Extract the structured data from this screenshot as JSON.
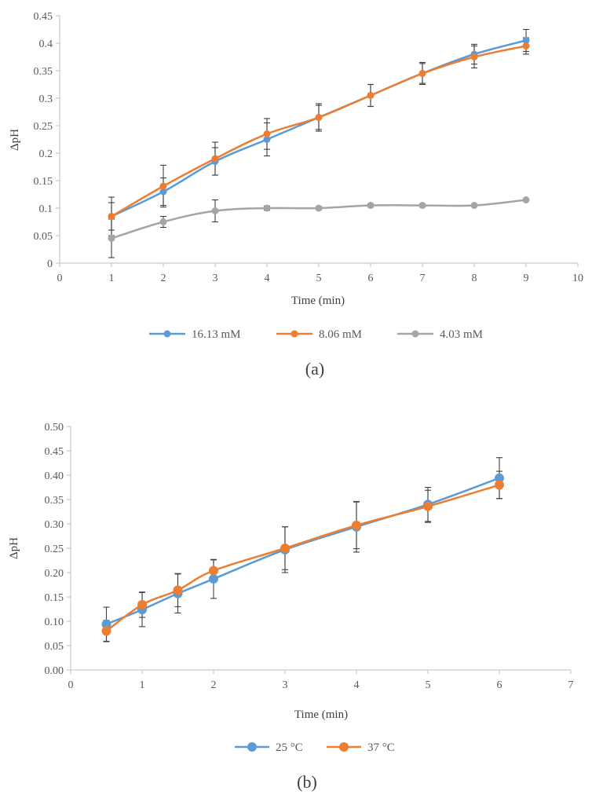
{
  "colors": {
    "blue": "#5b9bd5",
    "orange": "#ed7d31",
    "gray": "#a5a5a5",
    "axis": "#bfbfbf",
    "errbar": "#404040"
  },
  "chart_data": [
    {
      "type": "line",
      "caption": "(a)",
      "xlabel": "Time (min)",
      "ylabel": "ΔpH",
      "xlim": [
        0,
        10
      ],
      "ylim": [
        0,
        0.45
      ],
      "x_ticks": [
        "0",
        "1",
        "2",
        "3",
        "4",
        "5",
        "6",
        "7",
        "8",
        "9",
        "10"
      ],
      "y_ticks": [
        "0",
        "0.05",
        "0.1",
        "0.15",
        "0.2",
        "0.25",
        "0.3",
        "0.35",
        "0.4",
        "0.45"
      ],
      "legend_position": "bottom",
      "series": [
        {
          "name": "16.13 mM",
          "color": "#5b9bd5",
          "x": [
            1,
            2,
            3,
            4,
            5,
            6,
            7,
            8,
            9
          ],
          "values": [
            0.085,
            0.13,
            0.185,
            0.225,
            0.265,
            0.305,
            0.345,
            0.38,
            0.405
          ],
          "errors": [
            0.035,
            0.025,
            0.025,
            0.03,
            0.025,
            0.02,
            0.02,
            0.018,
            0.02
          ]
        },
        {
          "name": "8.06 mM",
          "color": "#ed7d31",
          "x": [
            1,
            2,
            3,
            4,
            5,
            6,
            7,
            8,
            9
          ],
          "values": [
            0.085,
            0.14,
            0.19,
            0.235,
            0.265,
            0.305,
            0.345,
            0.375,
            0.395
          ],
          "errors": [
            0.025,
            0.038,
            0.03,
            0.028,
            0.022,
            0.02,
            0.018,
            0.02,
            0.015
          ]
        },
        {
          "name": "4.03 mM",
          "color": "#a5a5a5",
          "x": [
            1,
            2,
            3,
            4,
            5,
            6,
            7,
            8,
            9
          ],
          "values": [
            0.045,
            0.075,
            0.095,
            0.1,
            0.1,
            0.105,
            0.105,
            0.105,
            0.115
          ],
          "errors": [
            0.035,
            0.01,
            0.02,
            0.004,
            0.003,
            0.003,
            0.003,
            0.002,
            0.002
          ]
        }
      ]
    },
    {
      "type": "line",
      "caption": "(b)",
      "xlabel": "Time (min)",
      "ylabel": "ΔpH",
      "xlim": [
        0,
        7
      ],
      "ylim": [
        0,
        0.5
      ],
      "x_ticks": [
        "0",
        "1",
        "2",
        "3",
        "4",
        "5",
        "6",
        "7"
      ],
      "y_ticks": [
        "0.00",
        "0.05",
        "0.10",
        "0.15",
        "0.20",
        "0.25",
        "0.30",
        "0.35",
        "0.40",
        "0.45",
        "0.50"
      ],
      "legend_position": "bottom",
      "series": [
        {
          "name": "25 °C",
          "color": "#5b9bd5",
          "x": [
            0.5,
            1,
            1.5,
            2,
            3,
            4,
            5,
            6
          ],
          "values": [
            0.094,
            0.124,
            0.157,
            0.187,
            0.247,
            0.294,
            0.34,
            0.394
          ],
          "errors": [
            0.035,
            0.035,
            0.04,
            0.04,
            0.047,
            0.052,
            0.035,
            0.042
          ]
        },
        {
          "name": "37 °C",
          "color": "#ed7d31",
          "x": [
            0.5,
            1,
            1.5,
            2,
            3,
            4,
            5,
            6
          ],
          "values": [
            0.08,
            0.134,
            0.164,
            0.204,
            0.25,
            0.297,
            0.336,
            0.38
          ],
          "errors": [
            0.022,
            0.026,
            0.034,
            0.022,
            0.044,
            0.048,
            0.033,
            0.028
          ]
        }
      ]
    }
  ]
}
